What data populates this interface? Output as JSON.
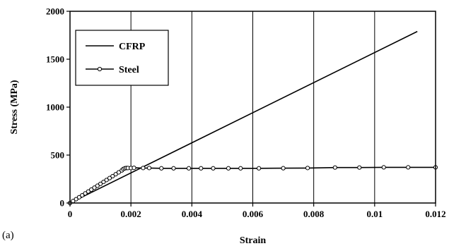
{
  "chart_data": {
    "type": "line",
    "panel_label": "(a)",
    "xlabel": "Strain",
    "ylabel": "Stress (MPa)",
    "xlim": [
      0,
      0.012
    ],
    "ylim": [
      0,
      2000
    ],
    "x_ticks": [
      0,
      0.002,
      0.004,
      0.006,
      0.008,
      0.01,
      0.012
    ],
    "x_tick_labels": [
      "0",
      "0.002",
      "0.004",
      "0.006",
      "0.008",
      "0.01",
      "0.012"
    ],
    "y_ticks": [
      0,
      500,
      1000,
      1500,
      2000
    ],
    "y_tick_labels": [
      "0",
      "500",
      "1000",
      "1500",
      "2000"
    ],
    "grid": "vertical lines at x ticks",
    "legend_position": "top-left",
    "series": [
      {
        "name": "CFRP",
        "marker": "none",
        "color": "#000000",
        "x": [
          0,
          0.0114
        ],
        "y": [
          0,
          1790
        ]
      },
      {
        "name": "Steel",
        "marker": "open-circle",
        "color": "#000000",
        "x": [
          0,
          0.0001,
          0.0002,
          0.0003,
          0.0004,
          0.0005,
          0.0006,
          0.0007,
          0.0008,
          0.0009,
          0.001,
          0.0011,
          0.0012,
          0.0013,
          0.0014,
          0.0015,
          0.0016,
          0.0017,
          0.00175,
          0.0018,
          0.00185,
          0.0019,
          0.002,
          0.0021,
          0.0024,
          0.0026,
          0.003,
          0.0034,
          0.0039,
          0.0043,
          0.0047,
          0.0052,
          0.0056,
          0.0062,
          0.007,
          0.0078,
          0.0087,
          0.0095,
          0.0103,
          0.0111,
          0.012
        ],
        "y": [
          0,
          20,
          40,
          60,
          80,
          100,
          120,
          140,
          160,
          180,
          200,
          220,
          240,
          260,
          280,
          300,
          320,
          340,
          355,
          362,
          365,
          365,
          365,
          367,
          365,
          365,
          362,
          362,
          362,
          362,
          362,
          362,
          362,
          362,
          363,
          365,
          370,
          370,
          372,
          372,
          372
        ]
      }
    ]
  }
}
